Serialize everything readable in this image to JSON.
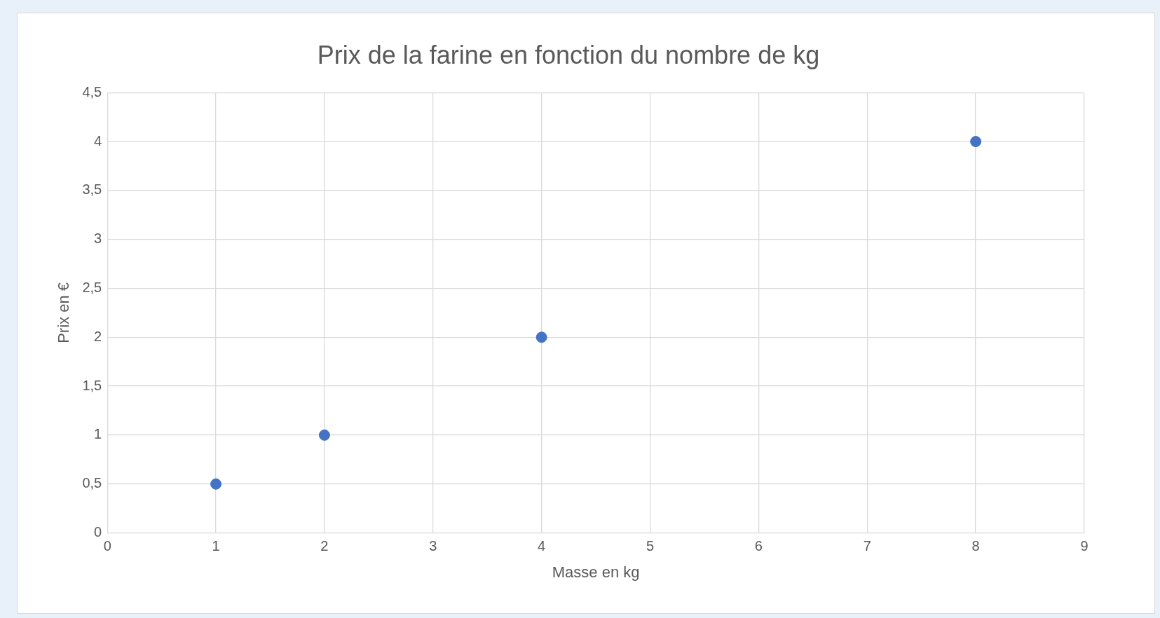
{
  "chart_data": {
    "type": "scatter",
    "title": "Prix de la farine en fonction du nombre de kg",
    "xlabel": "Masse en kg",
    "ylabel": "Prix en €",
    "x": [
      1,
      2,
      4,
      8
    ],
    "series": [
      {
        "color": "#4472c4",
        "values": [
          0.5,
          1,
          2,
          4
        ]
      }
    ],
    "xlim": [
      0,
      9
    ],
    "xticks": [
      0,
      1,
      2,
      3,
      4,
      5,
      6,
      7,
      8,
      9
    ],
    "ylim": [
      0,
      4.5
    ],
    "yticks": [
      0,
      {
        "value": 0.5,
        "label": "0,5"
      },
      1,
      {
        "value": 1.5,
        "label": "1,5"
      },
      2,
      {
        "value": 2.5,
        "label": "2,5"
      },
      3,
      {
        "value": 3.5,
        "label": "3,5"
      },
      4,
      {
        "value": 4.5,
        "label": "4,5"
      }
    ],
    "grid": true,
    "marker": "circle"
  }
}
